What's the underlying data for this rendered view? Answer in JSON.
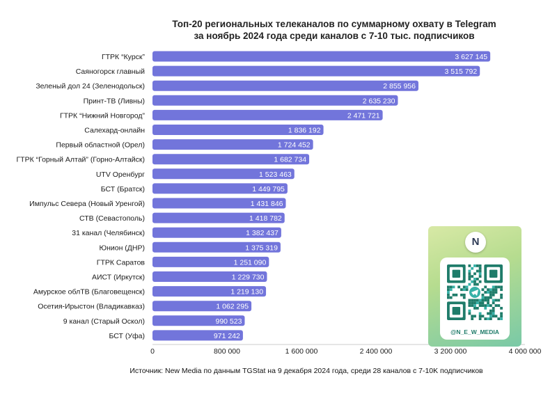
{
  "title_lines": [
    "Топ-20 региональных телеканалов по суммарному охвату в Telegram",
    "за ноябрь 2024 года среди каналов с 7-10 тыс. подписчиков"
  ],
  "footer": "Источник: New Media по данным TGStat на 9 декабря 2024 года, среди 28 каналов с 7-10K подписчиков",
  "qr_card": {
    "logo_icon": "new-media-logo",
    "code_icon": "qr-code-icon",
    "center_icon": "telegram-plane-icon",
    "handle": "@N_E_W_MEDIA"
  },
  "colors": {
    "bar": "#7275db",
    "bar_label": "#ffffff",
    "axis": "#cccccc",
    "qr_dark": "#1f7c6a",
    "qr_accent": "#36b1a8"
  },
  "chart_data": {
    "type": "bar",
    "orientation": "horizontal",
    "title": "Топ-20 региональных телеканалов по суммарному охвату в Telegram за ноябрь 2024 года среди каналов с 7-10 тыс. подписчиков",
    "categories": [
      "ГТРК “Курск”",
      "Саяногорск главный",
      "Зеленый дол 24 (Зеленодольск)",
      "Принт-ТВ (Ливны)",
      "ГТРК “Нижний Новгород”",
      "Салехард-онлайн",
      "Первый областной (Орел)",
      "ГТРК “Горный Алтай” (Горно-Алтайск)",
      "UTV Оренбург",
      "БСТ (Братск)",
      "Импульс Севера (Новый Уренгой)",
      "СТВ (Севастополь)",
      "31 канал (Челябинск)",
      "Юнион (ДНР)",
      "ГТРК Саратов",
      "АИСТ (Иркутск)",
      "Амурское облТВ (Благовещенск)",
      "Осетия-Ирыстон (Владикавказ)",
      "9 канал (Старый Оскол)",
      "БСТ (Уфа)"
    ],
    "values": [
      3627145,
      3515792,
      2855956,
      2635230,
      2471721,
      1836192,
      1724452,
      1682734,
      1523463,
      1449795,
      1431846,
      1418782,
      1382437,
      1375319,
      1251090,
      1229730,
      1219130,
      1062295,
      990523,
      971242
    ],
    "value_labels": [
      "3 627 145",
      "3 515 792",
      "2 855 956",
      "2 635 230",
      "2 471 721",
      "1 836 192",
      "1 724 452",
      "1 682 734",
      "1 523 463",
      "1 449 795",
      "1 431 846",
      "1 418 782",
      "1 382 437",
      "1 375 319",
      "1 251 090",
      "1 229 730",
      "1 219 130",
      "1 062 295",
      "990 523",
      "971 242"
    ],
    "xticks": [
      0,
      800000,
      1600000,
      2400000,
      3200000,
      4000000
    ],
    "xtick_labels": [
      "0",
      "800 000",
      "1 600 000",
      "2 400 000",
      "3 200 000",
      "4 000 000"
    ],
    "xlim": [
      0,
      4000000
    ],
    "grid": false,
    "legend": "none"
  }
}
